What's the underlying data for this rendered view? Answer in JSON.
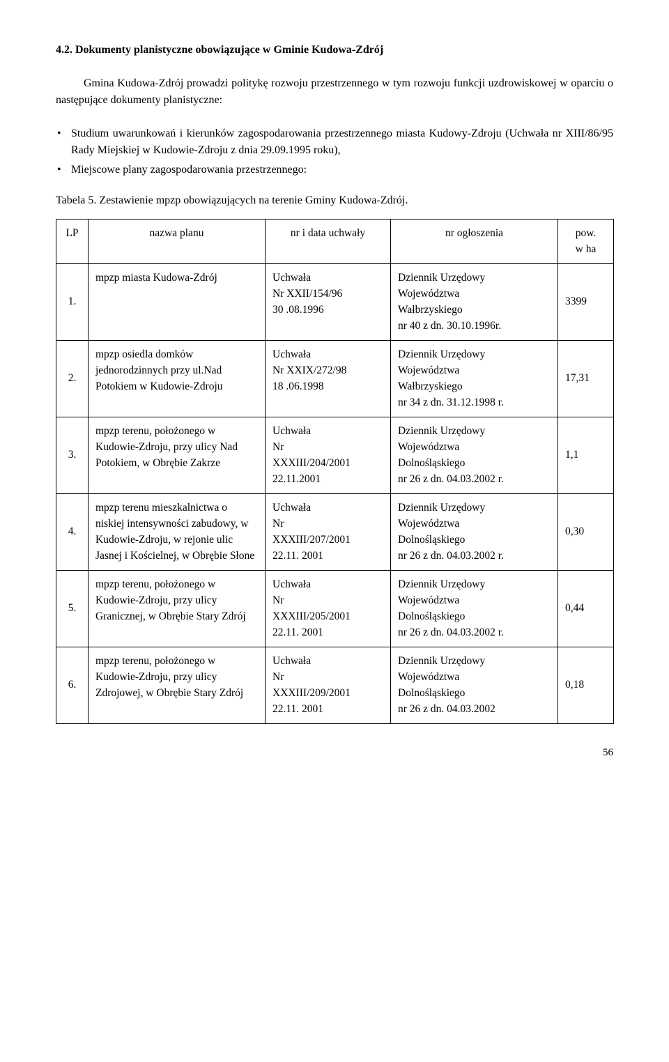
{
  "heading": "4.2. Dokumenty planistyczne obowiązujące w Gminie Kudowa-Zdrój",
  "intro": "Gmina Kudowa-Zdrój prowadzi politykę rozwoju przestrzennego w tym rozwoju funkcji uzdrowiskowej w oparciu o następujące dokumenty planistyczne:",
  "bullets": [
    "Studium uwarunkowań i kierunków zagospodarowania przestrzennego miasta Kudowy-Zdroju (Uchwała nr XIII/86/95 Rady Miejskiej w Kudowie-Zdroju z dnia 29.09.1995 roku),",
    "Miejscowe plany zagospodarowania przestrzennego:"
  ],
  "table_caption": "Tabela 5. Zestawienie mpzp obowiązujących na terenie Gminy Kudowa-Zdrój.",
  "columns": [
    "LP",
    "nazwa planu",
    "nr i data uchwały",
    "nr ogłoszenia",
    "pow.\nw ha"
  ],
  "rows": [
    {
      "lp": "1.",
      "name": "mpzp miasta Kudowa-Zdrój",
      "res": "Uchwała\nNr XXII/154/96\n30 .08.1996",
      "ann": "Dziennik Urzędowy\nWojewództwa\nWałbrzyskiego\nnr 40 z dn. 30.10.1996r.",
      "area": "3399"
    },
    {
      "lp": "2.",
      "name": "mpzp osiedla domków jednorodzinnych przy ul.Nad Potokiem w Kudowie-Zdroju",
      "res": "Uchwała\nNr XXIX/272/98\n18 .06.1998",
      "ann": "Dziennik Urzędowy\nWojewództwa\nWałbrzyskiego\nnr 34 z dn. 31.12.1998 r.",
      "area": "17,31"
    },
    {
      "lp": "3.",
      "name": "mpzp terenu, położonego w Kudowie-Zdroju, przy ulicy Nad Potokiem, w Obrębie Zakrze",
      "res": "Uchwała\nNr\nXXXIII/204/2001\n22.11.2001",
      "ann": "Dziennik Urzędowy\nWojewództwa\nDolnośląskiego\nnr 26 z dn. 04.03.2002 r.",
      "area": "1,1"
    },
    {
      "lp": "4.",
      "name": "mpzp terenu mieszkalnictwa o niskiej intensywności zabudowy, w Kudowie-Zdroju, w rejonie ulic Jasnej i Kościelnej,  w Obrębie Słone",
      "res": "Uchwała\nNr\nXXXIII/207/2001\n22.11. 2001",
      "ann": "Dziennik Urzędowy\nWojewództwa\nDolnośląskiego\nnr 26 z dn. 04.03.2002 r.",
      "area": "0,30"
    },
    {
      "lp": "5.",
      "name": "mpzp terenu, położonego w Kudowie-Zdroju, przy ulicy Granicznej, w Obrębie Stary Zdrój",
      "res": "Uchwała\nNr\nXXXIII/205/2001\n22.11. 2001",
      "ann": "Dziennik Urzędowy\nWojewództwa\nDolnośląskiego\nnr 26 z dn. 04.03.2002 r.",
      "area": "0,44"
    },
    {
      "lp": "6.",
      "name": "mpzp terenu, położonego w Kudowie-Zdroju, przy ulicy Zdrojowej, w Obrębie Stary Zdrój",
      "res": "Uchwała\nNr\nXXXIII/209/2001\n22.11. 2001",
      "ann": "Dziennik Urzędowy\nWojewództwa\nDolnośląskiego\nnr 26 z dn. 04.03.2002",
      "area": "0,18"
    }
  ],
  "page_number": "56"
}
